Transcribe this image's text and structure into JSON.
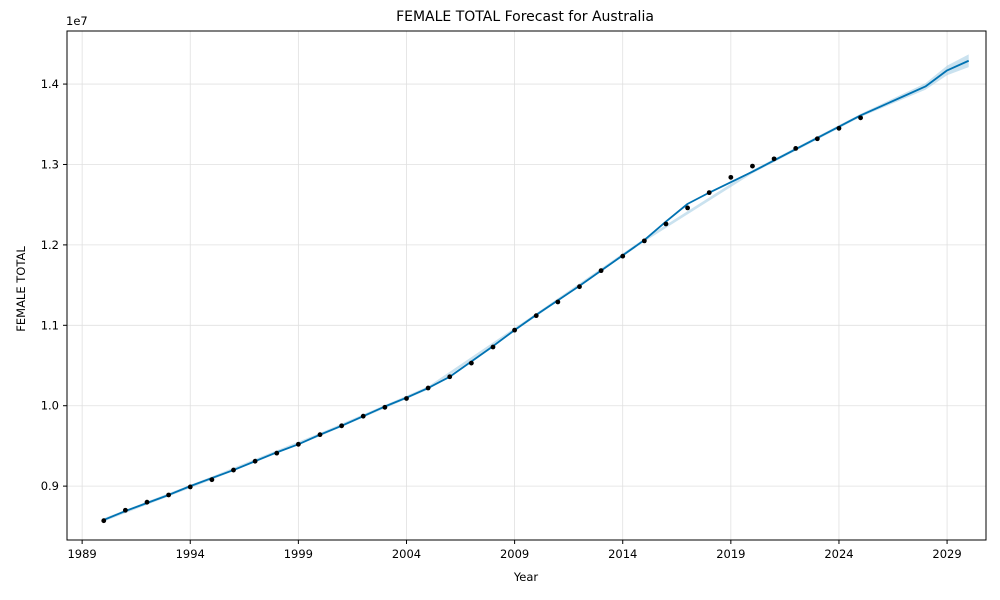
{
  "chart_data": {
    "type": "line",
    "title": "FEMALE TOTAL Forecast for Australia",
    "xlabel": "Year",
    "ylabel": "FEMALE TOTAL",
    "y_offset_label": "1e7",
    "xlim": [
      1988.3,
      2030.8
    ],
    "ylim": [
      8330000,
      14660000
    ],
    "x_ticks": [
      1989,
      1994,
      1999,
      2004,
      2009,
      2014,
      2019,
      2024,
      2029
    ],
    "x_tick_labels": [
      "1989",
      "1994",
      "1999",
      "2004",
      "2009",
      "2014",
      "2019",
      "2024",
      "2029"
    ],
    "y_ticks": [
      9000000,
      10000000,
      11000000,
      12000000,
      13000000,
      14000000
    ],
    "y_tick_labels": [
      "0.9",
      "1.0",
      "1.1",
      "1.2",
      "1.3",
      "1.4"
    ],
    "grid": true,
    "colors": {
      "forecast_line": "#0072B2",
      "interval": "#9ecae1",
      "observed": "#000000",
      "grid": "#e0e0e0"
    },
    "series": [
      {
        "name": "observed",
        "kind": "points",
        "x": [
          1990,
          1991,
          1992,
          1993,
          1994,
          1995,
          1996,
          1997,
          1998,
          1999,
          2000,
          2001,
          2002,
          2003,
          2004,
          2005,
          2006,
          2007,
          2008,
          2009,
          2010,
          2011,
          2012,
          2013,
          2014,
          2015,
          2016,
          2017,
          2018,
          2019,
          2020,
          2021,
          2022,
          2023,
          2024,
          2025
        ],
        "y": [
          8570000,
          8700000,
          8800000,
          8890000,
          8990000,
          9080000,
          9200000,
          9310000,
          9410000,
          9520000,
          9640000,
          9750000,
          9870000,
          9980000,
          10090000,
          10220000,
          10360000,
          10530000,
          10730000,
          10940000,
          11120000,
          11290000,
          11480000,
          11680000,
          11860000,
          12050000,
          12260000,
          12460000,
          12650000,
          12840000,
          12980000,
          13070000,
          13200000,
          13320000,
          13450000,
          13580000
        ]
      },
      {
        "name": "forecast",
        "kind": "line",
        "x": [
          1990,
          1991,
          1992,
          1993,
          1994,
          1995,
          1996,
          1997,
          1998,
          1999,
          2000,
          2001,
          2002,
          2003,
          2004,
          2005,
          2006,
          2007,
          2008,
          2009,
          2010,
          2011,
          2012,
          2013,
          2014,
          2015,
          2016,
          2017,
          2018,
          2019,
          2020,
          2021,
          2022,
          2023,
          2024,
          2025,
          2026,
          2027,
          2028,
          2029,
          2030
        ],
        "y": [
          8580000,
          8690000,
          8790000,
          8890000,
          9000000,
          9100000,
          9200000,
          9310000,
          9420000,
          9520000,
          9640000,
          9750000,
          9870000,
          9990000,
          10100000,
          10220000,
          10360000,
          10550000,
          10740000,
          10940000,
          11130000,
          11310000,
          11490000,
          11680000,
          11870000,
          12060000,
          12290000,
          12510000,
          12650000,
          12780000,
          12910000,
          13050000,
          13190000,
          13330000,
          13470000,
          13610000,
          13730000,
          13850000,
          13970000,
          14170000,
          14290000
        ]
      },
      {
        "name": "uncertainty",
        "kind": "band",
        "x": [
          1990,
          1995,
          2000,
          2005,
          2010,
          2015,
          2020,
          2025,
          2028,
          2029,
          2030
        ],
        "lower": [
          8560000,
          9080000,
          9620000,
          10200000,
          11110000,
          12040000,
          12890000,
          13590000,
          13930000,
          14110000,
          14210000
        ],
        "upper": [
          8600000,
          9120000,
          9660000,
          10240000,
          11150000,
          12080000,
          12930000,
          13630000,
          14010000,
          14230000,
          14370000
        ]
      }
    ]
  }
}
